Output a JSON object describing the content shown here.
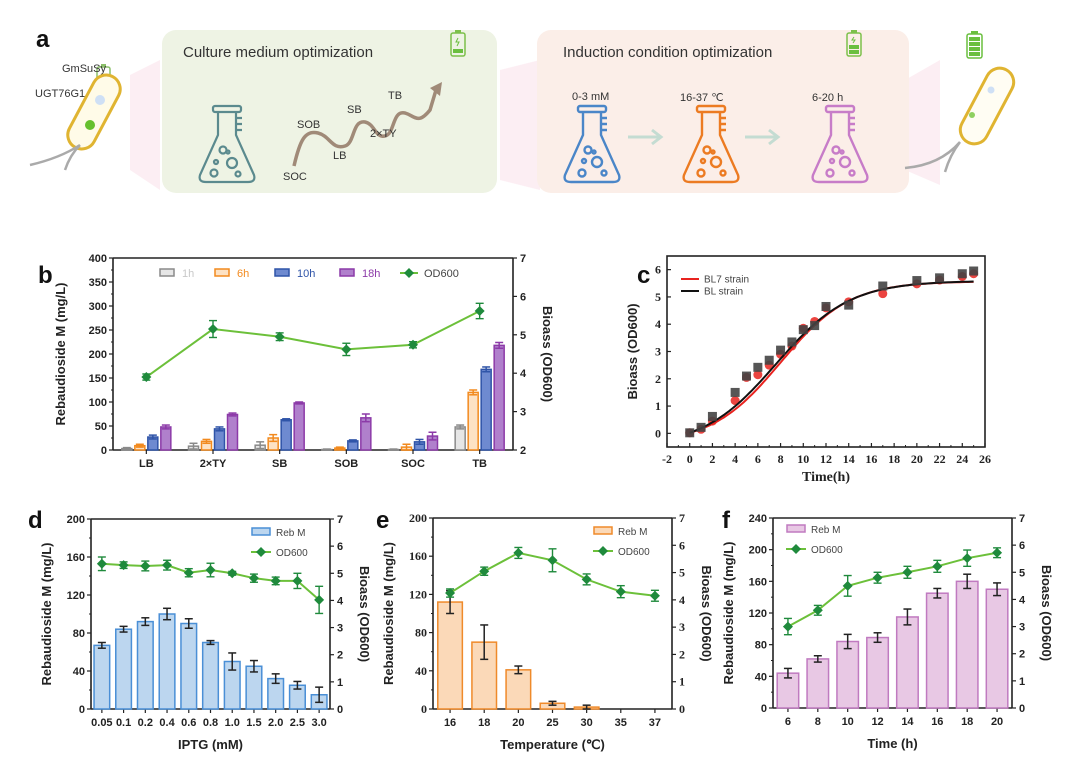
{
  "panel_a": {
    "letter": "a",
    "cell_left_labels": [
      "GmSuSy",
      "UGT76G1"
    ],
    "culture_box_title": "Culture medium optimization",
    "media_path_labels": [
      "SOC",
      "SOB",
      "LB",
      "SB",
      "2×TY",
      "TB"
    ],
    "induction_box_title": "Induction condition optimization",
    "induction_steps": [
      "0-3 mM",
      "16-37 ℃",
      "6-20 h"
    ],
    "colors": {
      "culture_bg": "#eef3e4",
      "induction_bg": "#fbeee8",
      "flask_culture": "#5b8a8e",
      "flask_iptg": "#4a86c8",
      "flask_temp": "#ec7b22",
      "flask_time": "#c77cc8",
      "path": "#a08a78",
      "arrow": "#c4dcd2",
      "battery_low": "#d9553a",
      "battery_green": "#6abf3f",
      "cell_outline": "#e0b431"
    }
  },
  "chart_data": [
    {
      "id": "b",
      "letter": "b",
      "type": "bar",
      "title": "",
      "categories": [
        "LB",
        "2×TY",
        "SB",
        "SOB",
        "SOC",
        "TB"
      ],
      "xlabel": "",
      "ylabel": "Rebaudioside M (mg/L)",
      "y2label": "Bioass (OD600)",
      "ylim": [
        0,
        400
      ],
      "yticks": [
        0,
        50,
        100,
        150,
        200,
        250,
        300,
        350,
        400
      ],
      "y2lim": [
        2,
        7
      ],
      "y2ticks": [
        2,
        3,
        4,
        5,
        6,
        7
      ],
      "legend_position": "top",
      "series": [
        {
          "name": "1h",
          "color": "#8a8a8a",
          "fill": "#e6e6e6",
          "values": [
            3,
            8,
            10,
            1,
            1,
            48
          ],
          "errors": [
            2,
            6,
            7,
            1,
            1,
            4
          ]
        },
        {
          "name": "6h",
          "color": "#f28a1e",
          "fill": "#fde2c4",
          "values": [
            9,
            18,
            25,
            4,
            6,
            120
          ],
          "errors": [
            3,
            4,
            7,
            2,
            6,
            5
          ]
        },
        {
          "name": "10h",
          "color": "#2f54a8",
          "fill": "#6e8ad0",
          "values": [
            27,
            44,
            63,
            19,
            17,
            168
          ],
          "errors": [
            4,
            4,
            2,
            2,
            5,
            5
          ]
        },
        {
          "name": "18h",
          "color": "#8c3aa8",
          "fill": "#b080cc",
          "values": [
            48,
            74,
            98,
            67,
            29,
            218
          ],
          "errors": [
            4,
            3,
            2,
            8,
            8,
            6
          ]
        }
      ],
      "line_series": {
        "name": "OD600",
        "color": "#6cc03a",
        "marker_color": "#1f8a3c",
        "values": [
          3.9,
          5.15,
          4.95,
          4.62,
          4.74,
          5.62
        ],
        "errors": [
          0.08,
          0.22,
          0.1,
          0.16,
          0.08,
          0.2
        ]
      }
    },
    {
      "id": "c",
      "letter": "c",
      "type": "scatter",
      "title": "",
      "xlabel": "Time(h)",
      "ylabel": "Bioass (OD600)",
      "xlim": [
        -2,
        26
      ],
      "xticks": [
        -2,
        0,
        2,
        4,
        6,
        8,
        10,
        12,
        14,
        16,
        18,
        20,
        22,
        24,
        26
      ],
      "ylim": [
        -0.5,
        6.5
      ],
      "yticks": [
        0,
        1,
        2,
        3,
        4,
        5,
        6
      ],
      "legend_position": "top-left",
      "series": [
        {
          "name": "BL7 strain",
          "color": "#e8231f",
          "marker": "circle",
          "x": [
            0,
            1,
            2,
            4,
            5,
            6,
            7,
            8,
            9,
            10,
            11,
            12,
            14,
            17,
            20,
            22,
            24,
            25
          ],
          "y": [
            0.02,
            0.15,
            0.45,
            1.2,
            2.05,
            2.15,
            2.5,
            2.9,
            3.2,
            3.85,
            4.1,
            4.6,
            4.82,
            5.12,
            5.48,
            5.62,
            5.75,
            5.85
          ],
          "fit": "logistic"
        },
        {
          "name": "BL  strain",
          "color": "#111111",
          "marker": "square",
          "x": [
            0,
            1,
            2,
            4,
            5,
            6,
            7,
            8,
            9,
            10,
            11,
            12,
            14,
            17,
            20,
            22,
            24,
            25
          ],
          "y": [
            0.02,
            0.22,
            0.62,
            1.5,
            2.1,
            2.42,
            2.68,
            3.05,
            3.35,
            3.8,
            3.95,
            4.65,
            4.7,
            5.4,
            5.6,
            5.7,
            5.85,
            5.95
          ],
          "fit": "logistic"
        }
      ]
    },
    {
      "id": "d",
      "letter": "d",
      "type": "bar",
      "title": "",
      "categories": [
        "0.05",
        "0.1",
        "0.2",
        "0.4",
        "0.6",
        "0.8",
        "1.0",
        "1.5",
        "2.0",
        "2.5",
        "3.0"
      ],
      "xlabel": "IPTG (mM)",
      "ylabel": "Rebaudioside M (mg/L)",
      "y2label": "Bioass (OD600)",
      "ylim": [
        0,
        200
      ],
      "yticks": [
        0,
        40,
        80,
        120,
        160,
        200
      ],
      "y2lim": [
        0,
        7
      ],
      "y2ticks": [
        0,
        1,
        2,
        3,
        4,
        5,
        6,
        7
      ],
      "legend_position": "top-right",
      "series": [
        {
          "name": "Reb M",
          "color": "#4a8fd6",
          "fill": "#bcd6ef",
          "values": [
            67,
            84,
            92,
            100,
            90,
            70,
            50,
            45,
            32,
            25,
            15
          ],
          "errors": [
            3,
            3,
            4,
            6,
            5,
            2,
            9,
            6,
            5,
            4,
            8
          ]
        }
      ],
      "line_series": {
        "name": "OD600",
        "color": "#6cc03a",
        "marker_color": "#1f8a3c",
        "values": [
          5.35,
          5.3,
          5.27,
          5.3,
          5.02,
          5.12,
          5.0,
          4.82,
          4.72,
          4.72,
          4.02
        ],
        "errors": [
          0.25,
          0.12,
          0.18,
          0.18,
          0.15,
          0.25,
          0.07,
          0.15,
          0.14,
          0.28,
          0.5
        ]
      }
    },
    {
      "id": "e",
      "letter": "e",
      "type": "bar",
      "title": "",
      "categories": [
        "16",
        "18",
        "20",
        "25",
        "30",
        "35",
        "37"
      ],
      "xlabel": "Temperature (℃)",
      "ylabel": "Rebaudioside M (mg/L)",
      "y2label": "Bioass (OD600)",
      "ylim": [
        0,
        200
      ],
      "yticks": [
        0,
        40,
        80,
        120,
        160,
        200
      ],
      "y2lim": [
        0,
        7
      ],
      "y2ticks": [
        0,
        1,
        2,
        3,
        4,
        5,
        6,
        7
      ],
      "legend_position": "top-right",
      "series": [
        {
          "name": "Reb M",
          "color": "#ef8a2a",
          "fill": "#fbd9b8",
          "values": [
            112,
            70,
            41,
            6,
            2,
            0,
            0
          ],
          "errors": [
            12,
            18,
            4,
            2,
            2,
            0,
            0
          ]
        }
      ],
      "line_series": {
        "name": "OD600",
        "color": "#6cc03a",
        "marker_color": "#1f8a3c",
        "values": [
          4.25,
          5.05,
          5.72,
          5.45,
          4.75,
          4.3,
          4.15
        ],
        "errors": [
          0.15,
          0.15,
          0.2,
          0.42,
          0.2,
          0.22,
          0.2
        ]
      }
    },
    {
      "id": "f",
      "letter": "f",
      "type": "bar",
      "title": "",
      "categories": [
        "6",
        "8",
        "10",
        "12",
        "14",
        "16",
        "18",
        "20"
      ],
      "xlabel": "Time (h)",
      "ylabel": "Rebaudioside M (mg/L)",
      "y2label": "Bioass (OD600)",
      "ylim": [
        0,
        240
      ],
      "yticks": [
        0,
        40,
        80,
        120,
        160,
        200,
        240
      ],
      "y2lim": [
        0,
        7
      ],
      "y2ticks": [
        0,
        1,
        2,
        3,
        4,
        5,
        6,
        7
      ],
      "legend_position": "top-left",
      "series": [
        {
          "name": "Reb M",
          "color": "#c07ac0",
          "fill": "#e8c8e4",
          "values": [
            44,
            62,
            84,
            89,
            115,
            145,
            160,
            150
          ],
          "errors": [
            6,
            4,
            9,
            6,
            10,
            6,
            9,
            8
          ]
        }
      ],
      "line_series": {
        "name": "OD600",
        "color": "#6cc03a",
        "marker_color": "#1f8a3c",
        "values": [
          3.0,
          3.6,
          4.5,
          4.8,
          5.0,
          5.22,
          5.52,
          5.72
        ],
        "errors": [
          0.3,
          0.18,
          0.38,
          0.2,
          0.22,
          0.22,
          0.3,
          0.18
        ]
      }
    }
  ]
}
